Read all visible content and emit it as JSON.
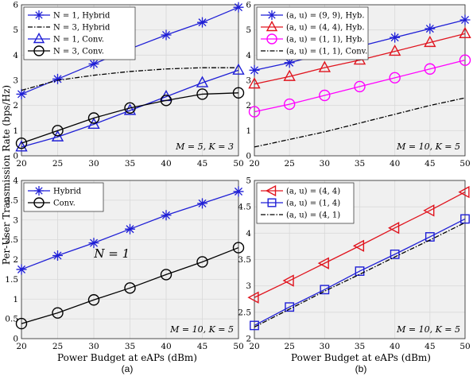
{
  "figure": {
    "ylabel": "Per-User Transmission Rate (bps/Hz)",
    "xlabel_left": "Power Budget at eAPs (dBm)",
    "xlabel_right": "Power Budget at eAPs (dBm)",
    "label_a": "(a)",
    "label_b": "(b)",
    "colors": {
      "blue": "#1f1fd6",
      "red": "#e0141e",
      "magenta": "#ff00ff",
      "black": "#000000",
      "panel_bg": "#f0f0f0",
      "grid": "#d9d9d9"
    }
  },
  "chart_data": [
    {
      "id": "top-left",
      "type": "line",
      "xlim": [
        20,
        50
      ],
      "ylim": [
        0,
        6
      ],
      "xticks": [
        20,
        25,
        30,
        35,
        40,
        45,
        50
      ],
      "yticks": [
        0,
        1,
        2,
        3,
        4,
        5,
        6
      ],
      "grid": true,
      "legend_position": "top-left",
      "annotation": "M = 5, K = 3",
      "x": [
        20,
        25,
        30,
        35,
        40,
        45,
        50
      ],
      "series": [
        {
          "name": "N = 1, Hybrid",
          "color": "#1f1fd6",
          "marker": "star",
          "dash": "solid",
          "values": [
            2.45,
            3.05,
            3.65,
            4.25,
            4.8,
            5.3,
            5.9
          ]
        },
        {
          "name": "N = 3, Hybrid",
          "color": "#000000",
          "marker": "none",
          "dash": "dashdot",
          "values": [
            2.6,
            3.0,
            3.2,
            3.35,
            3.45,
            3.5,
            3.5
          ]
        },
        {
          "name": "N = 1, Conv.",
          "color": "#1f1fd6",
          "marker": "triangle",
          "dash": "solid",
          "values": [
            0.35,
            0.75,
            1.25,
            1.8,
            2.35,
            2.9,
            3.4
          ]
        },
        {
          "name": "N = 3, Conv.",
          "color": "#000000",
          "marker": "circle",
          "dash": "solid",
          "values": [
            0.5,
            1.0,
            1.5,
            1.9,
            2.2,
            2.45,
            2.5
          ]
        }
      ]
    },
    {
      "id": "top-right",
      "type": "line",
      "xlim": [
        20,
        50
      ],
      "ylim": [
        0,
        6
      ],
      "xticks": [
        20,
        25,
        30,
        35,
        40,
        45,
        50
      ],
      "yticks": [
        0,
        1,
        2,
        3,
        4,
        5,
        6
      ],
      "grid": true,
      "legend_position": "top-left",
      "annotation": "M = 10, K = 5",
      "x": [
        20,
        25,
        30,
        35,
        40,
        45,
        50
      ],
      "series": [
        {
          "name": "(a, u) = (9, 9), Hyb.",
          "color": "#1f1fd6",
          "marker": "star",
          "dash": "solid",
          "values": [
            3.4,
            3.7,
            4.05,
            4.35,
            4.7,
            5.05,
            5.4
          ]
        },
        {
          "name": "(a, u) = (4, 4), Hyb.",
          "color": "#e0141e",
          "marker": "triangle",
          "dash": "solid",
          "values": [
            2.85,
            3.15,
            3.5,
            3.8,
            4.15,
            4.5,
            4.85
          ]
        },
        {
          "name": "(a, u) = (1, 1), Hyb.",
          "color": "#ff00ff",
          "marker": "circle",
          "dash": "solid",
          "values": [
            1.75,
            2.05,
            2.4,
            2.75,
            3.1,
            3.45,
            3.8
          ]
        },
        {
          "name": "(a, u) = (1, 1), Conv.",
          "color": "#000000",
          "marker": "none",
          "dash": "dashdot",
          "values": [
            0.35,
            0.65,
            0.95,
            1.3,
            1.65,
            2.0,
            2.3
          ]
        }
      ]
    },
    {
      "id": "bottom-left",
      "type": "line",
      "xlim": [
        20,
        50
      ],
      "ylim": [
        0,
        4
      ],
      "xticks": [
        20,
        25,
        30,
        35,
        40,
        45,
        50
      ],
      "yticks": [
        0,
        0.5,
        1,
        1.5,
        2,
        2.5,
        3,
        3.5,
        4
      ],
      "yticklabels": [
        "0",
        "0.5",
        "1",
        "1.5",
        "2",
        "2.5",
        "3",
        "3.5",
        "4"
      ],
      "grid": true,
      "legend_position": "top-left",
      "annotation": "M = 10, K = 5",
      "inner_text": "N = 1",
      "x": [
        20,
        25,
        30,
        35,
        40,
        45,
        50
      ],
      "series": [
        {
          "name": "Hybrid",
          "color": "#1f1fd6",
          "marker": "star",
          "dash": "solid",
          "values": [
            1.75,
            2.1,
            2.42,
            2.77,
            3.12,
            3.42,
            3.72
          ]
        },
        {
          "name": "Conv.",
          "color": "#000000",
          "marker": "circle",
          "dash": "solid",
          "values": [
            0.38,
            0.65,
            0.98,
            1.28,
            1.62,
            1.94,
            2.3
          ]
        }
      ]
    },
    {
      "id": "bottom-right",
      "type": "line",
      "xlim": [
        20,
        50
      ],
      "ylim": [
        2,
        5
      ],
      "xticks": [
        20,
        25,
        30,
        35,
        40,
        45,
        50
      ],
      "yticks": [
        2,
        2.5,
        3,
        3.5,
        4,
        4.5,
        5
      ],
      "yticklabels": [
        "2",
        "2.5",
        "3",
        "3.5",
        "4",
        "4.5",
        "5"
      ],
      "grid": true,
      "legend_position": "top-left",
      "annotation": "M = 10, K = 5",
      "x": [
        20,
        25,
        30,
        35,
        40,
        45,
        50
      ],
      "series": [
        {
          "name": "(a, u) = (4, 4)",
          "color": "#e0141e",
          "marker": "triangle-left",
          "dash": "solid",
          "values": [
            2.78,
            3.1,
            3.43,
            3.76,
            4.1,
            4.43,
            4.78
          ]
        },
        {
          "name": "(a, u) = (1, 4)",
          "color": "#1f1fd6",
          "marker": "square",
          "dash": "solid",
          "values": [
            2.25,
            2.6,
            2.93,
            3.28,
            3.6,
            3.93,
            4.27
          ]
        },
        {
          "name": "(a, u) = (4, 1)",
          "color": "#000000",
          "marker": "none",
          "dash": "dashdot",
          "values": [
            2.22,
            2.56,
            2.9,
            3.22,
            3.55,
            3.87,
            4.2
          ]
        }
      ]
    }
  ]
}
